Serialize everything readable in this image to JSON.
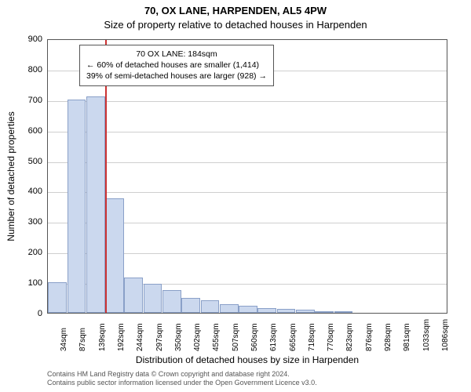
{
  "titles": {
    "line1": "70, OX LANE, HARPENDEN, AL5 4PW",
    "line2": "Size of property relative to detached houses in Harpenden"
  },
  "chart": {
    "type": "histogram",
    "background_color": "#ffffff",
    "grid_color": "#cfcfcf",
    "axis_color": "#555555",
    "bar_fill": "#cbd8ee",
    "bar_border": "#8aa0c8",
    "marker_color": "#cc3333",
    "ylabel": "Number of detached properties",
    "xlabel": "Distribution of detached houses by size in Harpenden",
    "ylim": [
      0,
      900
    ],
    "ytick_step": 100,
    "x_categories": [
      "34sqm",
      "87sqm",
      "139sqm",
      "192sqm",
      "244sqm",
      "297sqm",
      "350sqm",
      "402sqm",
      "455sqm",
      "507sqm",
      "560sqm",
      "613sqm",
      "665sqm",
      "718sqm",
      "770sqm",
      "823sqm",
      "876sqm",
      "928sqm",
      "981sqm",
      "1033sqm",
      "1086sqm"
    ],
    "values": [
      100,
      700,
      710,
      375,
      115,
      95,
      75,
      50,
      40,
      28,
      22,
      15,
      12,
      10,
      6,
      5,
      0,
      0,
      0,
      0,
      0
    ],
    "marker_x_value": 184,
    "x_domain": [
      34,
      1086
    ],
    "annotation": {
      "line1": "70 OX LANE: 184sqm",
      "line2": "← 60% of detached houses are smaller (1,414)",
      "line3": "39% of semi-detached houses are larger (928) →"
    }
  },
  "footnote": {
    "line1": "Contains HM Land Registry data © Crown copyright and database right 2024.",
    "line2": "Contains public sector information licensed under the Open Government Licence v3.0."
  }
}
